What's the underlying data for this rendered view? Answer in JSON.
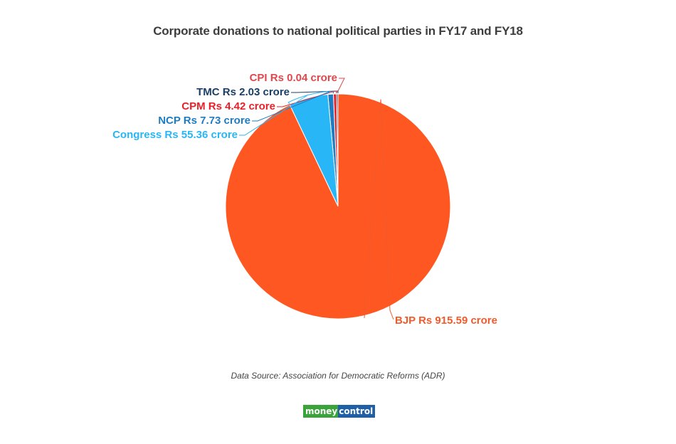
{
  "title": "Corporate donations to national political parties in FY17 and FY18",
  "source": "Data Source: Association for Democratic Reforms (ADR)",
  "logo": {
    "part1": "money",
    "part2": "control",
    "color1": "#3aa33a",
    "color2": "#1e5fa8"
  },
  "labels": {
    "cpi": "CPI Rs 0.04 crore",
    "tmc": "TMC Rs 2.03 crore",
    "cpm": "CPM Rs 4.42 crore",
    "ncp": "NCP Rs 7.73 crore",
    "congress": "Congress Rs 55.36 crore",
    "bjp": "BJP Rs 915.59 crore"
  },
  "chart_data": {
    "type": "pie",
    "title": "Corporate donations to national political parties in FY17 and FY18",
    "unit": "Rs crore",
    "categories": [
      "CPI",
      "TMC",
      "CPM",
      "NCP",
      "Congress",
      "BJP"
    ],
    "values": [
      0.04,
      2.03,
      4.42,
      7.73,
      55.36,
      915.59
    ],
    "colors": [
      "#e0474c",
      "#1b3f66",
      "#e8202a",
      "#1f7cc1",
      "#29b6f6",
      "#ff5722"
    ],
    "start_angle": "12 o'clock, counter-clockwise",
    "legend": "none (direct labels)",
    "annotations": [
      "Data Source: Association for Democratic Reforms (ADR)"
    ]
  }
}
